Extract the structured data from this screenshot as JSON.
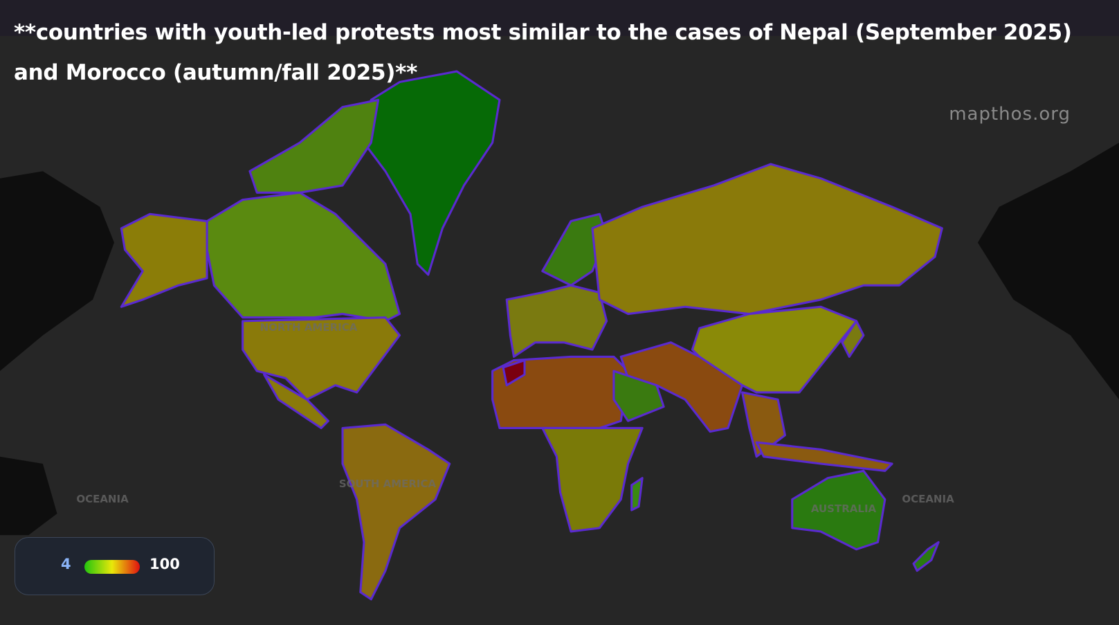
{
  "header": {
    "title": "**countries with youth-led protests most similar to the cases of Nepal (September 2025) and Morocco (autumn/fall 2025)**",
    "watermark": "mapthos.org"
  },
  "map": {
    "labels": [
      "NORTH AMERICA",
      "SOUTH AMERICA",
      "AUSTRALIA",
      "OCEANIA",
      "OCEANIA"
    ]
  },
  "legend": {
    "min": 4,
    "max": 100
  }
}
